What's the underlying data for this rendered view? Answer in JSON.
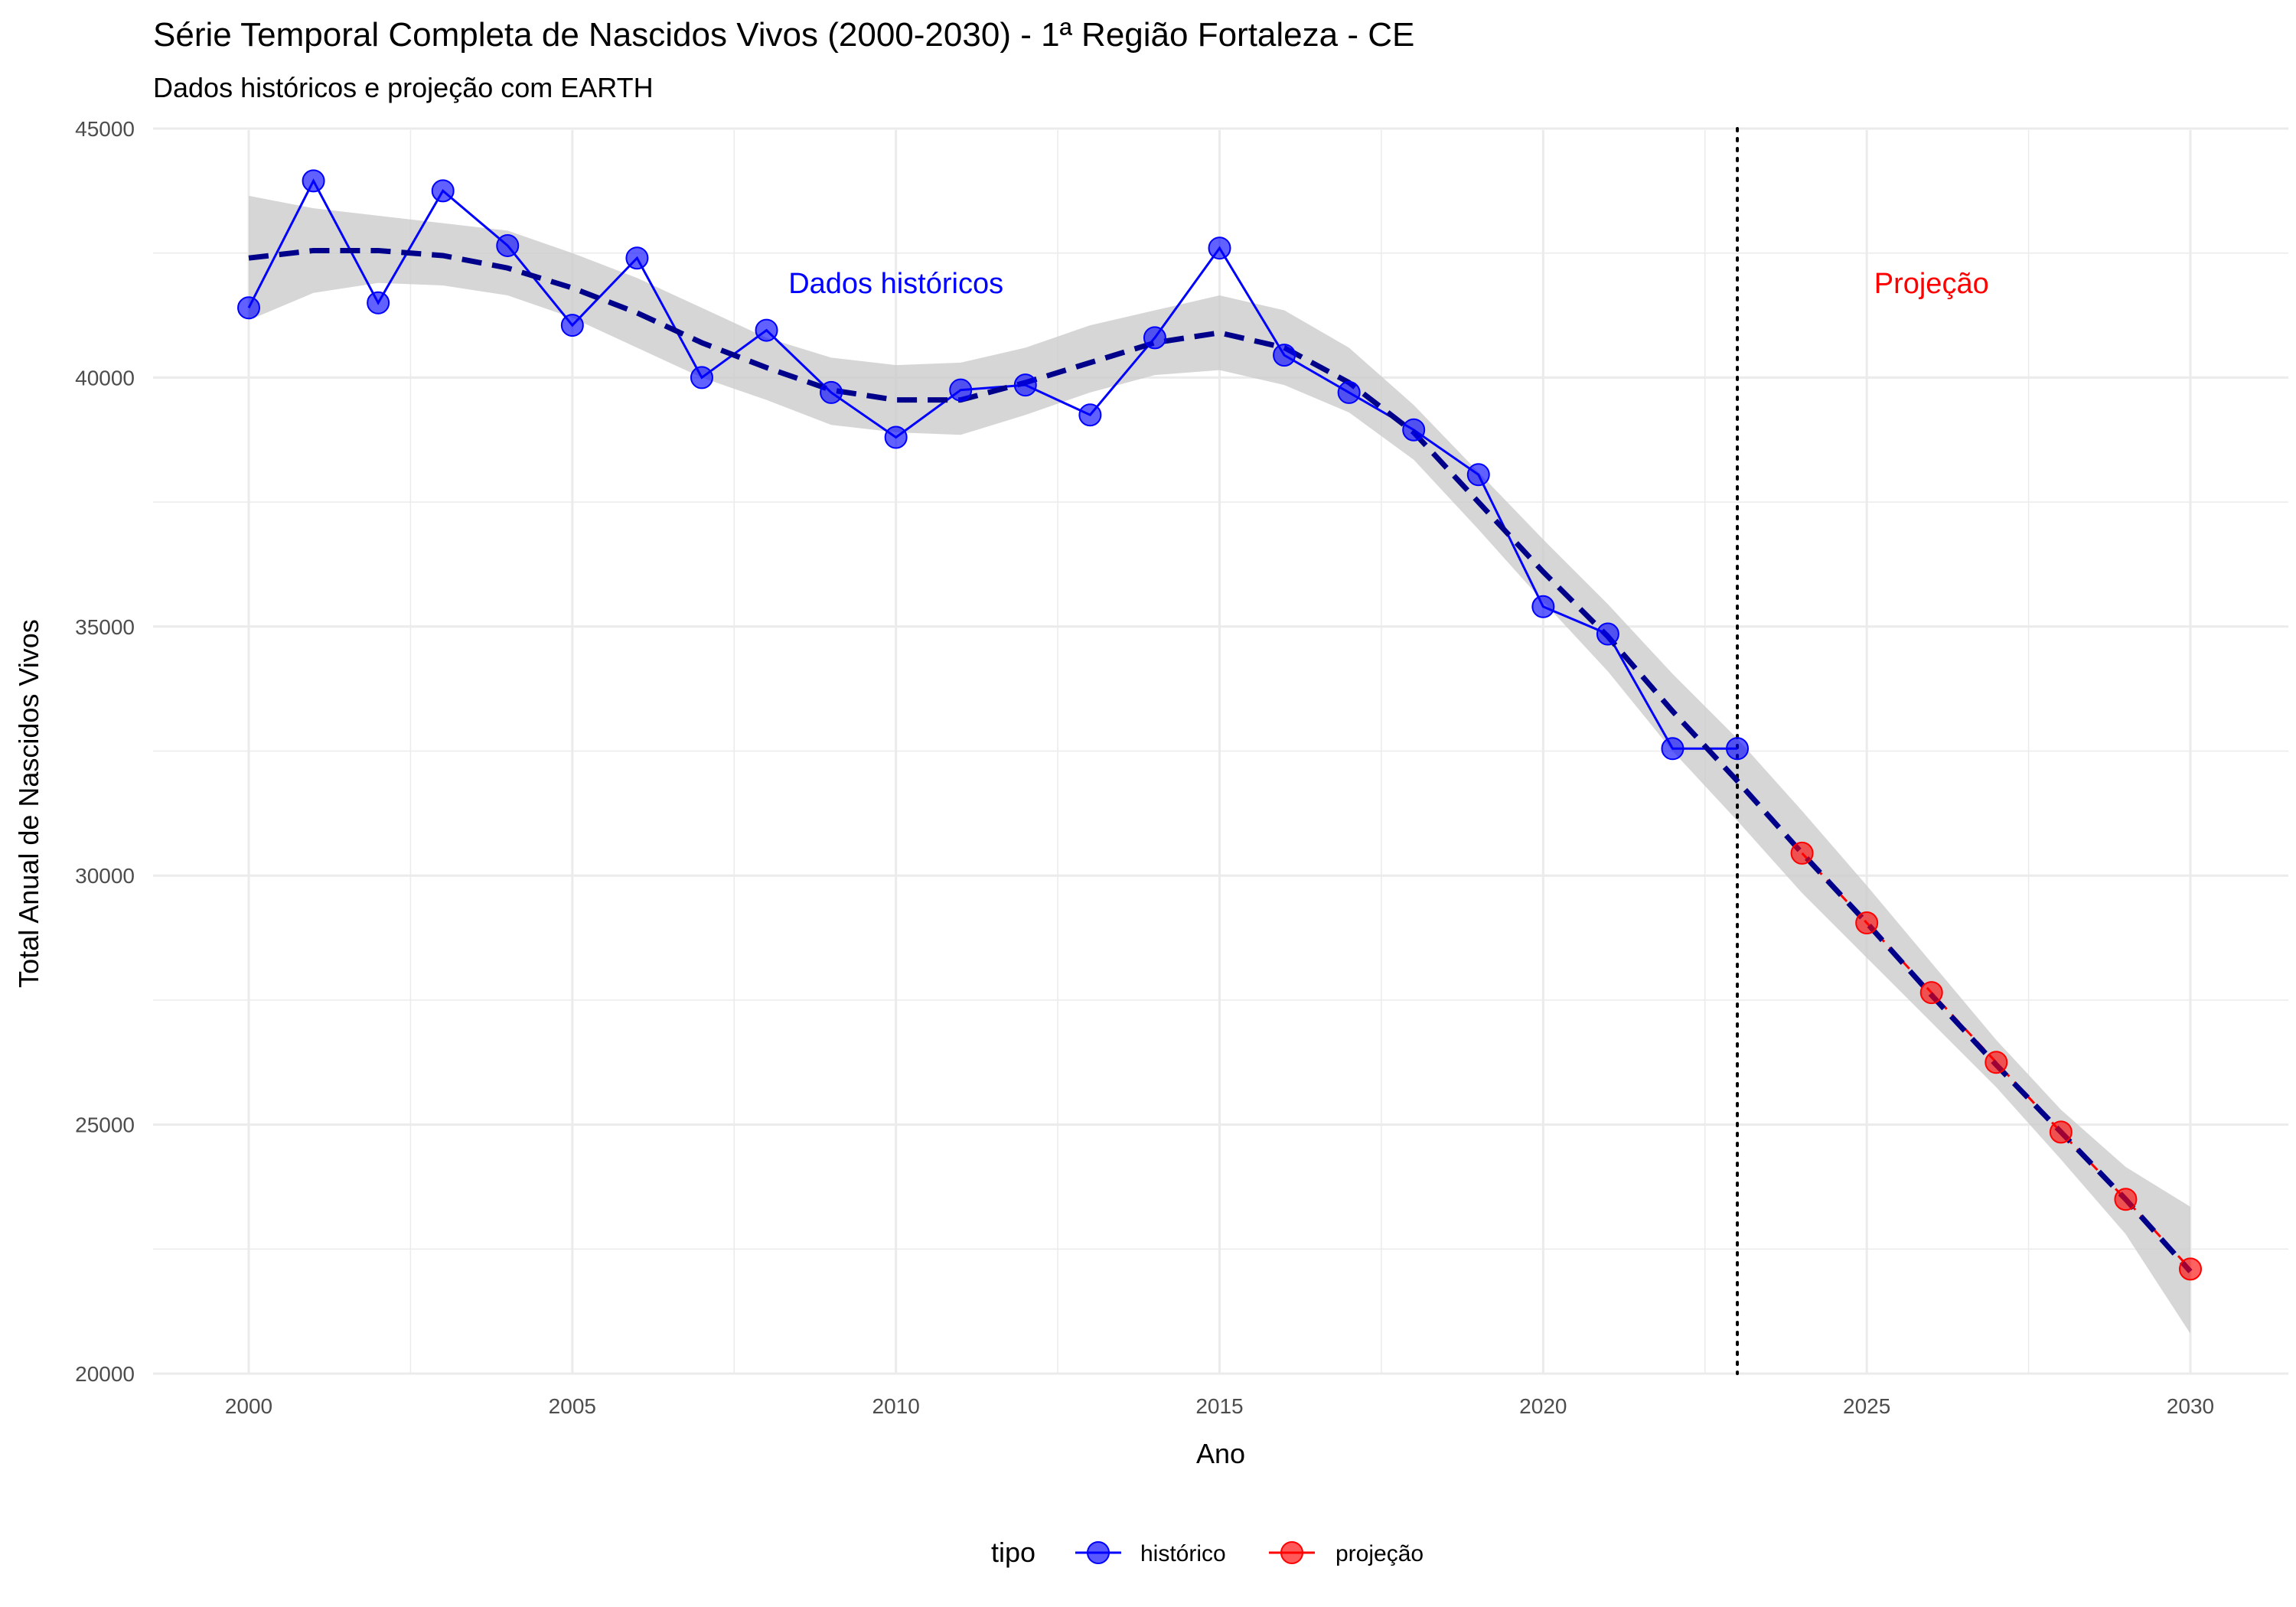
{
  "chart_data": {
    "type": "line",
    "title": "Série Temporal Completa de Nascidos Vivos (2000-2030) -  1ª Região Fortaleza - CE",
    "subtitle": "Dados históricos e projeção com EARTH",
    "xlabel": "Ano",
    "ylabel": "Total Anual de Nascidos Vivos",
    "xlim": [
      1998.5,
      2031.5
    ],
    "ylim": [
      20000,
      45000
    ],
    "x_ticks": [
      2000,
      2005,
      2010,
      2015,
      2020,
      2025,
      2030
    ],
    "y_ticks": [
      20000,
      25000,
      30000,
      35000,
      40000,
      45000
    ],
    "grid": true,
    "colors": {
      "historico": "#0000ff",
      "projecao": "#ff0000",
      "trend": "#00008b",
      "band": "#cccccc",
      "grid": "#ebebeb",
      "vline": "#000000"
    },
    "vline_x": 2023,
    "series": [
      {
        "name": "histórico",
        "color": "#0000ff",
        "x": [
          2000,
          2001,
          2002,
          2003,
          2004,
          2005,
          2006,
          2007,
          2008,
          2009,
          2010,
          2011,
          2012,
          2013,
          2014,
          2015,
          2016,
          2017,
          2018,
          2019,
          2020,
          2021,
          2022,
          2023
        ],
        "y": [
          41400,
          43950,
          41500,
          43750,
          42650,
          41050,
          42400,
          40000,
          40950,
          39700,
          38800,
          39750,
          39850,
          39250,
          40800,
          42600,
          40450,
          39700,
          38950,
          38050,
          35400,
          34850,
          32550,
          32550
        ]
      },
      {
        "name": "projeção",
        "color": "#ff0000",
        "x": [
          2024,
          2025,
          2026,
          2027,
          2028,
          2029,
          2030
        ],
        "y": [
          30450,
          29050,
          27650,
          26250,
          24850,
          23500,
          22100
        ]
      }
    ],
    "trend": {
      "x": [
        2000,
        2001,
        2002,
        2003,
        2004,
        2005,
        2006,
        2007,
        2008,
        2009,
        2010,
        2011,
        2012,
        2013,
        2014,
        2015,
        2016,
        2017,
        2018,
        2019,
        2020,
        2021,
        2022,
        2023,
        2024,
        2025,
        2026,
        2027,
        2028,
        2029,
        2030
      ],
      "y": [
        42400,
        42550,
        42550,
        42450,
        42200,
        41800,
        41300,
        40700,
        40200,
        39750,
        39550,
        39550,
        39900,
        40300,
        40700,
        40900,
        40600,
        39900,
        38900,
        37500,
        36100,
        34800,
        33300,
        31900,
        30450,
        29050,
        27600,
        26200,
        24850,
        23500,
        22050
      ],
      "lower": [
        41150,
        41700,
        41900,
        41850,
        41650,
        41200,
        40600,
        40000,
        39550,
        39050,
        38900,
        38850,
        39250,
        39700,
        40050,
        40150,
        39850,
        39300,
        38350,
        36950,
        35500,
        34100,
        32500,
        31100,
        29650,
        28350,
        27050,
        25750,
        24300,
        22800,
        20800
      ],
      "upper": [
        43650,
        43400,
        43250,
        43100,
        42950,
        42500,
        42000,
        41400,
        40800,
        40400,
        40250,
        40300,
        40600,
        41050,
        41350,
        41650,
        41350,
        40600,
        39450,
        38100,
        36750,
        35450,
        34050,
        32750,
        31300,
        29800,
        28250,
        26700,
        25300,
        24150,
        23350
      ]
    },
    "annotations": [
      {
        "text": "Dados históricos",
        "x": 2010,
        "y": 41700,
        "color": "#0000ff"
      },
      {
        "text": "Projeção",
        "x": 2026,
        "y": 41700,
        "color": "#ff0000"
      }
    ],
    "legend": {
      "title": "tipo",
      "position": "bottom",
      "entries": [
        {
          "label": "histórico",
          "color": "#0000ff"
        },
        {
          "label": "projeção",
          "color": "#ff0000"
        }
      ]
    }
  }
}
